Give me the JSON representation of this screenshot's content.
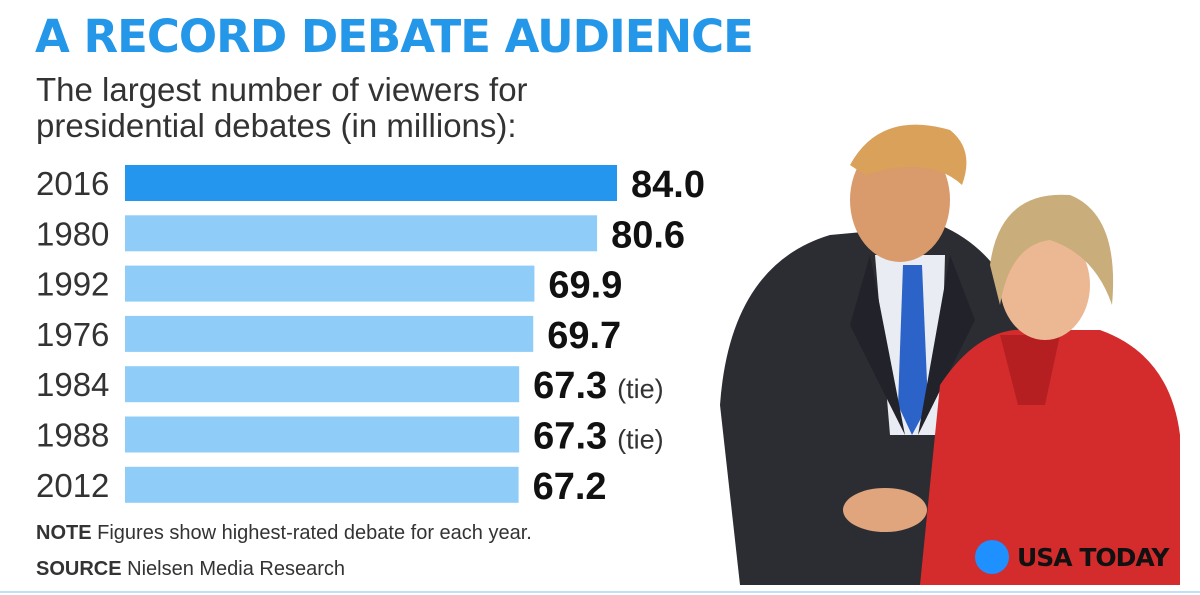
{
  "header": {
    "title": "A RECORD DEBATE AUDIENCE",
    "subtitle": "The largest number of viewers for presidential debates (in millions):"
  },
  "colors": {
    "title": "#2597e8",
    "highlight_bar": "#2596ee",
    "bar": "#8fcdf8"
  },
  "chart_data": {
    "type": "bar",
    "orientation": "horizontal",
    "title": "A RECORD DEBATE AUDIENCE",
    "subtitle": "The largest number of viewers for presidential debates (in millions):",
    "categories": [
      "2016",
      "1980",
      "1992",
      "1976",
      "1984",
      "1988",
      "2012"
    ],
    "values": [
      84.0,
      80.6,
      69.9,
      69.7,
      67.3,
      67.3,
      67.2
    ],
    "value_labels": [
      "84.0",
      "80.6",
      "69.9",
      "69.7",
      "67.3",
      "67.3",
      "67.2"
    ],
    "annotations": [
      "",
      "",
      "",
      "",
      "(tie)",
      "(tie)",
      ""
    ],
    "highlight_index": 0,
    "xlim": [
      0,
      84.0
    ],
    "grid": false,
    "xlabel": "",
    "ylabel": ""
  },
  "footer": {
    "note_label": "NOTE",
    "note_text": "Figures show highest-rated debate for each year.",
    "source_label": "SOURCE",
    "source_text": "Nielsen Media Research"
  },
  "photo": {
    "left_figure": "man-in-dark-suit-blue-tie",
    "right_figure": "woman-in-red-jacket"
  },
  "logo": {
    "text": "USA TODAY",
    "dot_color": "#1e90ff"
  }
}
